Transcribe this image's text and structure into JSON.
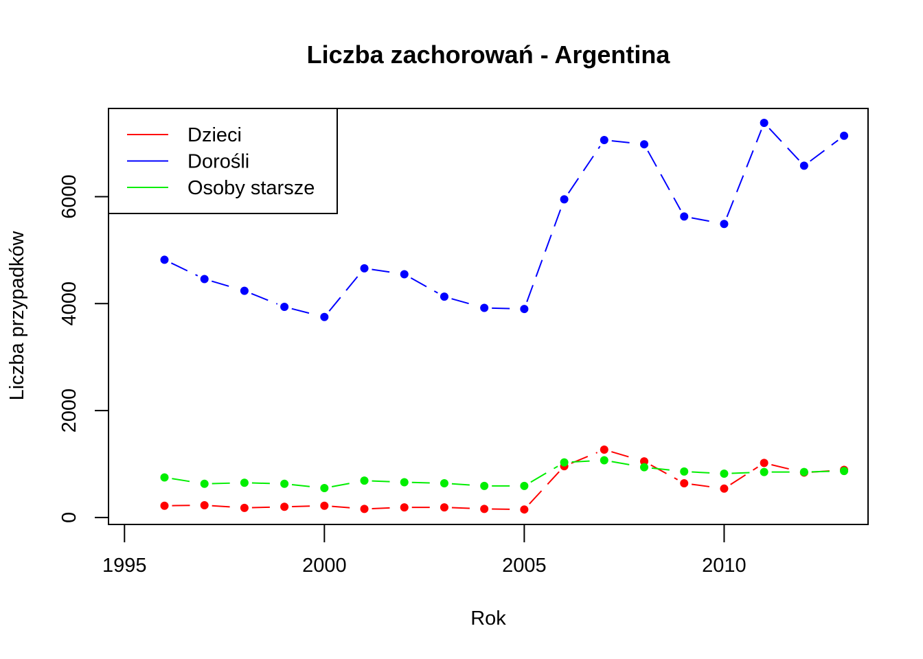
{
  "chart_data": {
    "type": "line",
    "title": "Liczba zachorowań -  Argentina",
    "xlabel": "Rok",
    "ylabel": "Liczba przypadków",
    "xlim": [
      1994.6,
      2013.6
    ],
    "ylim": [
      -130,
      7650
    ],
    "xticks": [
      1995,
      2000,
      2005,
      2010
    ],
    "yticks": [
      0,
      2000,
      4000,
      6000
    ],
    "legend_position": "top-left",
    "x": [
      1996,
      1997,
      1998,
      1999,
      2000,
      2001,
      2002,
      2003,
      2004,
      2005,
      2006,
      2007,
      2008,
      2009,
      2010,
      2011,
      2012,
      2013
    ],
    "series": [
      {
        "name": "Dzieci",
        "color": "#ff0000",
        "values": [
          220,
          230,
          180,
          200,
          220,
          160,
          190,
          190,
          160,
          150,
          960,
          1270,
          1050,
          640,
          540,
          1020,
          840,
          890
        ]
      },
      {
        "name": "Dorośli",
        "color": "#0000ff",
        "values": [
          4820,
          4460,
          4240,
          3940,
          3750,
          4660,
          4550,
          4130,
          3920,
          3900,
          5950,
          7060,
          6980,
          5630,
          5490,
          7380,
          6580,
          7140
        ]
      },
      {
        "name": "Osoby starsze",
        "color": "#00ee00",
        "values": [
          750,
          630,
          650,
          630,
          550,
          690,
          660,
          640,
          590,
          590,
          1030,
          1070,
          940,
          860,
          820,
          850,
          850,
          870
        ]
      }
    ]
  }
}
